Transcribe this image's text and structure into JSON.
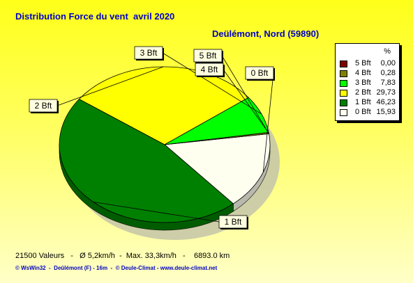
{
  "title": "Distribution Force du vent  avril 2020",
  "subtitle": "Deülémont, Nord (59890)",
  "stats": "21500 Valeurs   -   Ø 5,2km/h  -  Max. 33,3km/h   -    6893.0 km",
  "footer": "© WsWin32  -  Deûlémont (F) - 16m  -  © Deule-Climat - www.deule-climat.net",
  "legend": {
    "header": "%",
    "rows": [
      {
        "label": "5 Bft",
        "value": "0,00",
        "color": "#800000"
      },
      {
        "label": "4 Bft",
        "value": "0,28",
        "color": "#808000"
      },
      {
        "label": "3 Bft",
        "value": "7,83",
        "color": "#00ff00"
      },
      {
        "label": "2 Bft",
        "value": "29,73",
        "color": "#ffff00"
      },
      {
        "label": "1 Bft",
        "value": "46,23",
        "color": "#008000"
      },
      {
        "label": "0 Bft",
        "value": "15,93",
        "color": "#fffff0"
      }
    ]
  },
  "chart_data": {
    "type": "pie",
    "title": "Distribution Force du vent  avril 2020",
    "subtitle": "Deülémont, Nord (59890)",
    "unit": "%",
    "legend_position": "right",
    "slices": [
      {
        "label": "0 Bft",
        "value": 15.93,
        "color": "#fffff0"
      },
      {
        "label": "1 Bft",
        "value": 46.23,
        "color": "#008000"
      },
      {
        "label": "2 Bft",
        "value": 29.73,
        "color": "#ffff00"
      },
      {
        "label": "3 Bft",
        "value": 7.83,
        "color": "#00ff00"
      },
      {
        "label": "4 Bft",
        "value": 0.28,
        "color": "#808000"
      },
      {
        "label": "5 Bft",
        "value": 0.0,
        "color": "#800000"
      }
    ]
  }
}
